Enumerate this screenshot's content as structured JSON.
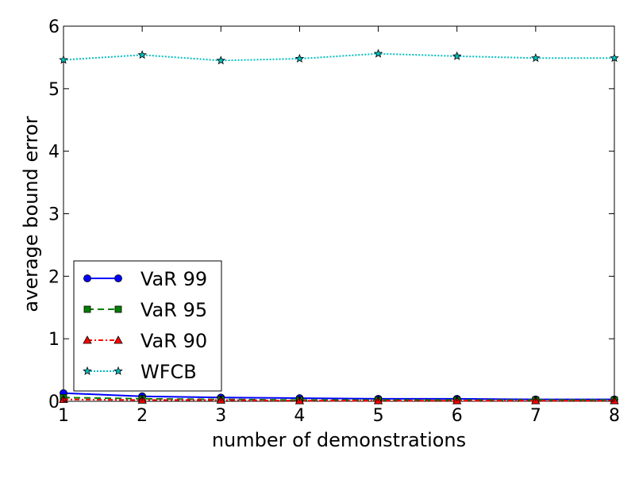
{
  "chart_data": {
    "type": "line",
    "title": "",
    "xlabel": "number of demonstrations",
    "ylabel": "average bound error",
    "xlim": [
      1,
      8
    ],
    "ylim": [
      0,
      6
    ],
    "x_ticks": [
      "1",
      "2",
      "3",
      "4",
      "5",
      "6",
      "7",
      "8"
    ],
    "y_ticks": [
      "0",
      "1",
      "2",
      "3",
      "4",
      "5",
      "6"
    ],
    "x": [
      1,
      2,
      3,
      4,
      5,
      6,
      7,
      8
    ],
    "grid": false,
    "legend_position": "lower-left",
    "series": [
      {
        "name": "VaR 99",
        "values": [
          0.13,
          0.08,
          0.06,
          0.05,
          0.04,
          0.04,
          0.03,
          0.03
        ],
        "color": "#0000ff",
        "line_style": "solid",
        "marker": "circle"
      },
      {
        "name": "VaR 95",
        "values": [
          0.06,
          0.04,
          0.03,
          0.02,
          0.02,
          0.02,
          0.02,
          0.02
        ],
        "color": "#008000",
        "line_style": "dashed",
        "marker": "square"
      },
      {
        "name": "VaR 90",
        "values": [
          0.03,
          0.02,
          0.02,
          0.01,
          0.01,
          0.01,
          0.01,
          0.01
        ],
        "color": "#ff0000",
        "line_style": "dashdot",
        "marker": "triangle"
      },
      {
        "name": "WFCB",
        "values": [
          5.46,
          5.54,
          5.45,
          5.48,
          5.56,
          5.52,
          5.49,
          5.49
        ],
        "color": "#00bfbf",
        "line_style": "dotted",
        "marker": "star"
      }
    ]
  }
}
